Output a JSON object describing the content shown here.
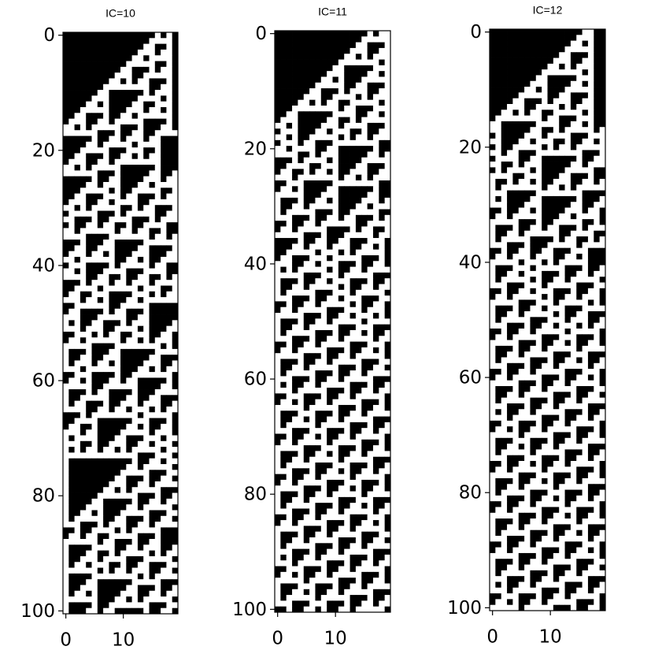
{
  "chart_data": [
    {
      "type": "automaton",
      "title": "IC=10",
      "ic": 10,
      "rule": 110,
      "xlim": [
        -0.5,
        19.5
      ],
      "ylim": [
        100.5,
        -0.5
      ],
      "xticks": [
        0,
        10
      ],
      "yticks": [
        0,
        20,
        40,
        60,
        80,
        100
      ],
      "cmap": [
        "#000000",
        "#ffffff"
      ]
    },
    {
      "type": "automaton",
      "title": "IC=11",
      "ic": 11,
      "rule": 110,
      "xlim": [
        -0.5,
        19.5
      ],
      "ylim": [
        100.5,
        -0.5
      ],
      "xticks": [
        0,
        10
      ],
      "yticks": [
        0,
        20,
        40,
        60,
        80,
        100
      ],
      "cmap": [
        "#000000",
        "#ffffff"
      ]
    },
    {
      "type": "automaton",
      "title": "IC=12",
      "ic": 12,
      "rule": 110,
      "xlim": [
        -0.5,
        19.5
      ],
      "ylim": [
        100.5,
        -0.5
      ],
      "xticks": [
        0,
        10
      ],
      "yticks": [
        0,
        20,
        40,
        60,
        80,
        100
      ],
      "cmap": [
        "#000000",
        "#ffffff"
      ]
    }
  ]
}
